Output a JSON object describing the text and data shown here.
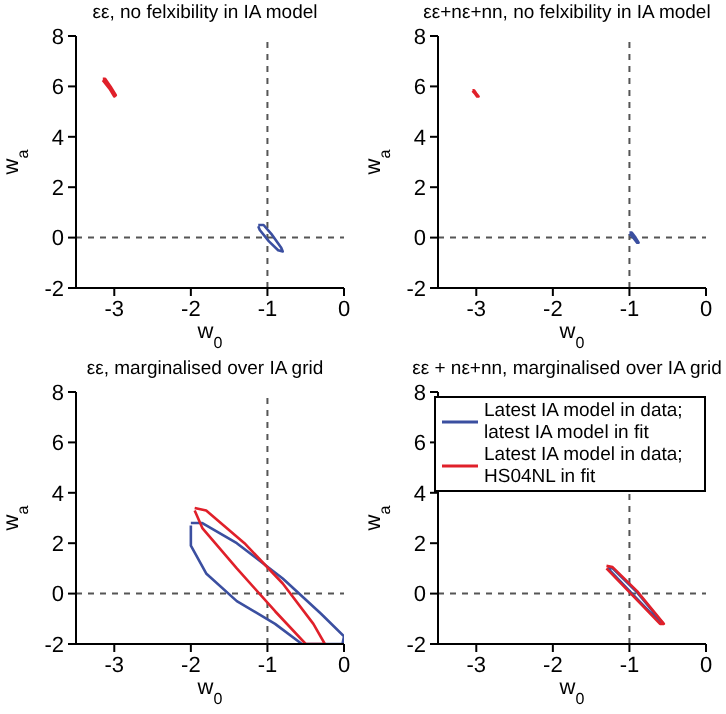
{
  "chart_data": [
    {
      "type": "line",
      "title": "εε, no felxibility in IA model",
      "xlabel": "w$_{0}$",
      "ylabel": "w$_{a}$",
      "xlim": [
        -3.5,
        0
      ],
      "ylim": [
        -2,
        8
      ],
      "xticks": [
        -3,
        -2,
        -1,
        0
      ],
      "yticks": [
        -2,
        0,
        2,
        4,
        6,
        8
      ],
      "ref_lines": [
        {
          "axis": "x",
          "value": -1,
          "line_style": "dashed"
        },
        {
          "axis": "y",
          "value": 0,
          "line_style": "dashed"
        }
      ],
      "series": [
        {
          "color": "#3b4fa0",
          "x": [
            -1.12,
            -1.05,
            -0.95,
            -0.82,
            -0.8,
            -0.86,
            -0.98,
            -1.1,
            -1.12
          ],
          "values": [
            0.5,
            0.5,
            0.15,
            -0.4,
            -0.55,
            -0.5,
            -0.15,
            0.3,
            0.45
          ]
        },
        {
          "color": "#e0202a",
          "x": [
            -3.15,
            -3.12,
            -3.05,
            -2.98,
            -3.0,
            -3.06,
            -3.15
          ],
          "values": [
            6.3,
            6.3,
            6.0,
            5.65,
            5.6,
            5.9,
            6.25
          ]
        }
      ]
    },
    {
      "type": "line",
      "title": "εε+nε+nn, no felxibility in IA model",
      "xlabel": "w$_{0}$",
      "ylabel": "w$_{a}$",
      "xlim": [
        -3.5,
        0
      ],
      "ylim": [
        -2,
        8
      ],
      "xticks": [
        -3,
        -2,
        -1,
        0
      ],
      "yticks": [
        -2,
        0,
        2,
        4,
        6,
        8
      ],
      "ref_lines": [
        {
          "axis": "x",
          "value": -1,
          "line_style": "dashed"
        },
        {
          "axis": "y",
          "value": 0,
          "line_style": "dashed"
        }
      ],
      "series": [
        {
          "color": "#3b4fa0",
          "x": [
            -1.0,
            -0.97,
            -0.92,
            -0.88,
            -0.9,
            -0.95,
            -1.0
          ],
          "values": [
            0.2,
            0.2,
            0.0,
            -0.2,
            -0.2,
            0.0,
            0.15
          ]
        },
        {
          "color": "#e0202a",
          "x": [
            -3.05,
            -3.03,
            -3.0,
            -2.97,
            -2.99,
            -3.02,
            -3.05
          ],
          "values": [
            5.85,
            5.85,
            5.72,
            5.6,
            5.6,
            5.73,
            5.82
          ]
        }
      ]
    },
    {
      "type": "line",
      "title": "εε, marginalised over IA grid",
      "xlabel": "w$_{0}$",
      "ylabel": "w$_{a}$",
      "xlim": [
        -3.5,
        0
      ],
      "ylim": [
        -2,
        8
      ],
      "xticks": [
        -3,
        -2,
        -1,
        0
      ],
      "yticks": [
        -2,
        0,
        2,
        4,
        6,
        8
      ],
      "ref_lines": [
        {
          "axis": "x",
          "value": -1,
          "line_style": "dashed"
        },
        {
          "axis": "y",
          "value": 0,
          "line_style": "dashed"
        }
      ],
      "series": [
        {
          "color": "#3b4fa0",
          "x": [
            -2.0,
            -1.85,
            -1.4,
            -0.8,
            -0.3,
            0,
            -0.02,
            -0.55,
            -0.9,
            -1.4,
            -1.8,
            -2.0,
            -2.0
          ],
          "values": [
            2.8,
            2.8,
            2.0,
            0.6,
            -0.8,
            -1.7,
            -2,
            -2,
            -1.2,
            -0.3,
            0.8,
            1.9,
            2.7
          ]
        },
        {
          "color": "#e0202a",
          "x": [
            -1.95,
            -1.8,
            -1.3,
            -0.8,
            -0.4,
            -0.25,
            -0.5,
            -0.9,
            -1.4,
            -1.85,
            -1.95
          ],
          "values": [
            3.4,
            3.3,
            2.0,
            0.4,
            -1.2,
            -2,
            -2,
            -0.7,
            1.0,
            2.6,
            3.3
          ]
        }
      ]
    },
    {
      "type": "line",
      "title": "εε + nε+nn, marginalised over IA grid",
      "xlabel": "w$_{0}$",
      "ylabel": "w$_{a}$",
      "xlim": [
        -3.5,
        0
      ],
      "ylim": [
        -2,
        8
      ],
      "xticks": [
        -3,
        -2,
        -1,
        0
      ],
      "yticks": [
        -2,
        0,
        2,
        4,
        6,
        8
      ],
      "legend": "top right",
      "ref_lines": [
        {
          "axis": "x",
          "value": -1,
          "line_style": "dashed"
        },
        {
          "axis": "y",
          "value": 0,
          "line_style": "dashed"
        }
      ],
      "series": [
        {
          "name": "Latest IA model in data; latest IA model in fit",
          "color": "#3b4fa0",
          "x": [
            -1.28,
            -1.22,
            -0.9,
            -0.57,
            -0.6,
            -0.95,
            -1.28
          ],
          "values": [
            1.05,
            1.0,
            0.05,
            -1.15,
            -1.15,
            -0.05,
            1.0
          ]
        },
        {
          "name": "Latest IA model in data; HS04NL in fit",
          "color": "#e0202a",
          "x": [
            -1.3,
            -1.22,
            -0.9,
            -0.55,
            -0.6,
            -0.95,
            -1.3
          ],
          "values": [
            1.1,
            1.05,
            0.1,
            -1.2,
            -1.2,
            -0.1,
            1.0
          ]
        }
      ]
    }
  ]
}
